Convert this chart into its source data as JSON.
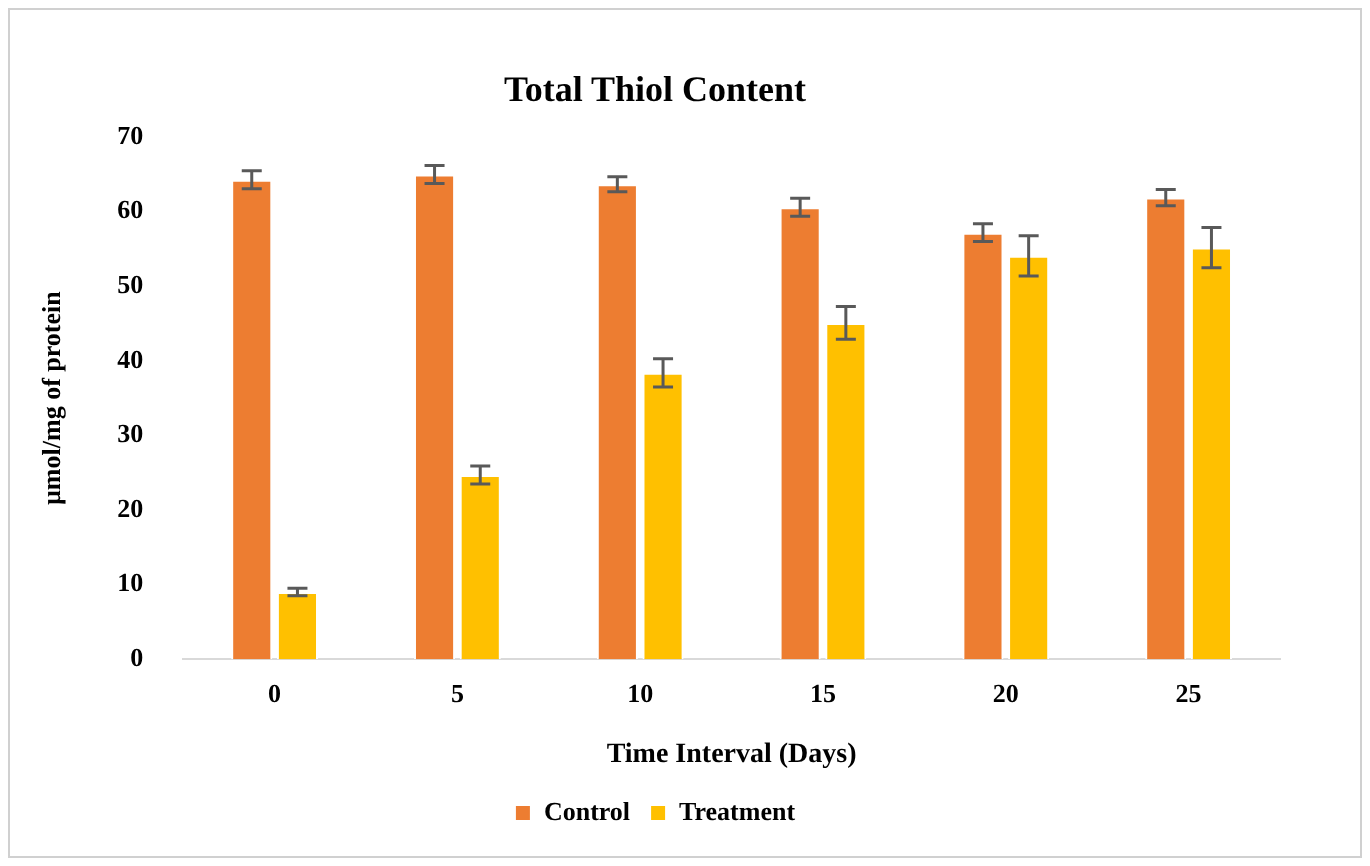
{
  "chart_data": {
    "type": "bar",
    "title": "Total Thiol Content",
    "xlabel": "Time Interval (Days)",
    "ylabel": "µmol/mg of protein",
    "categories": [
      "0",
      "5",
      "10",
      "15",
      "20",
      "25"
    ],
    "series": [
      {
        "name": "Control",
        "color": "#ed7d31",
        "values": [
          64.3,
          65.0,
          63.7,
          60.6,
          57.2,
          61.9
        ],
        "errors": [
          1.2,
          1.2,
          1.0,
          1.2,
          1.2,
          1.1
        ]
      },
      {
        "name": "Treatment",
        "color": "#ffc000",
        "values": [
          9.0,
          24.7,
          38.4,
          45.1,
          54.1,
          55.2
        ],
        "errors": [
          0.5,
          1.2,
          1.9,
          2.2,
          2.7,
          2.7
        ]
      }
    ],
    "ylim": [
      0,
      70
    ],
    "yticks": [
      0,
      10,
      20,
      30,
      40,
      50,
      60,
      70
    ],
    "grid": false,
    "legend": "bottom"
  }
}
